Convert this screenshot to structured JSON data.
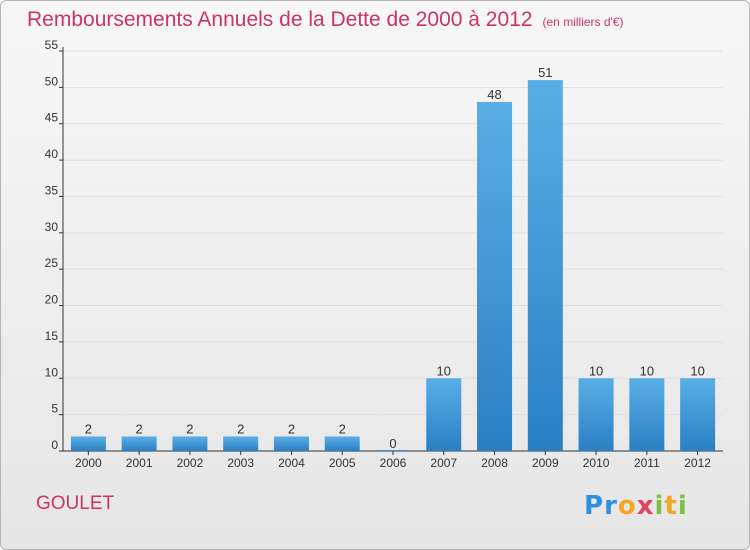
{
  "header": {
    "title": "Remboursements Annuels de la Dette de 2000 à 2012",
    "unit": "(en milliers d'€)"
  },
  "footer": {
    "place": "GOULET",
    "logo": "Proxiti"
  },
  "colors": {
    "title": "#cc3366",
    "bar_top": "#5aaee6",
    "bar_bottom": "#2a7fc4",
    "grid": "#e0e0e0"
  },
  "chart_data": {
    "type": "bar",
    "title": "Remboursements Annuels de la Dette de 2000 à 2012",
    "subtitle": "(en milliers d'€)",
    "categories": [
      "2000",
      "2001",
      "2002",
      "2003",
      "2004",
      "2005",
      "2006",
      "2007",
      "2008",
      "2009",
      "2010",
      "2011",
      "2012"
    ],
    "values": [
      2,
      2,
      2,
      2,
      2,
      2,
      0,
      10,
      48,
      51,
      10,
      10,
      10
    ],
    "ylim": [
      0,
      55
    ],
    "yticks": [
      0,
      5,
      10,
      15,
      20,
      25,
      30,
      35,
      40,
      45,
      50,
      55
    ],
    "grid": true,
    "legend": "none"
  }
}
